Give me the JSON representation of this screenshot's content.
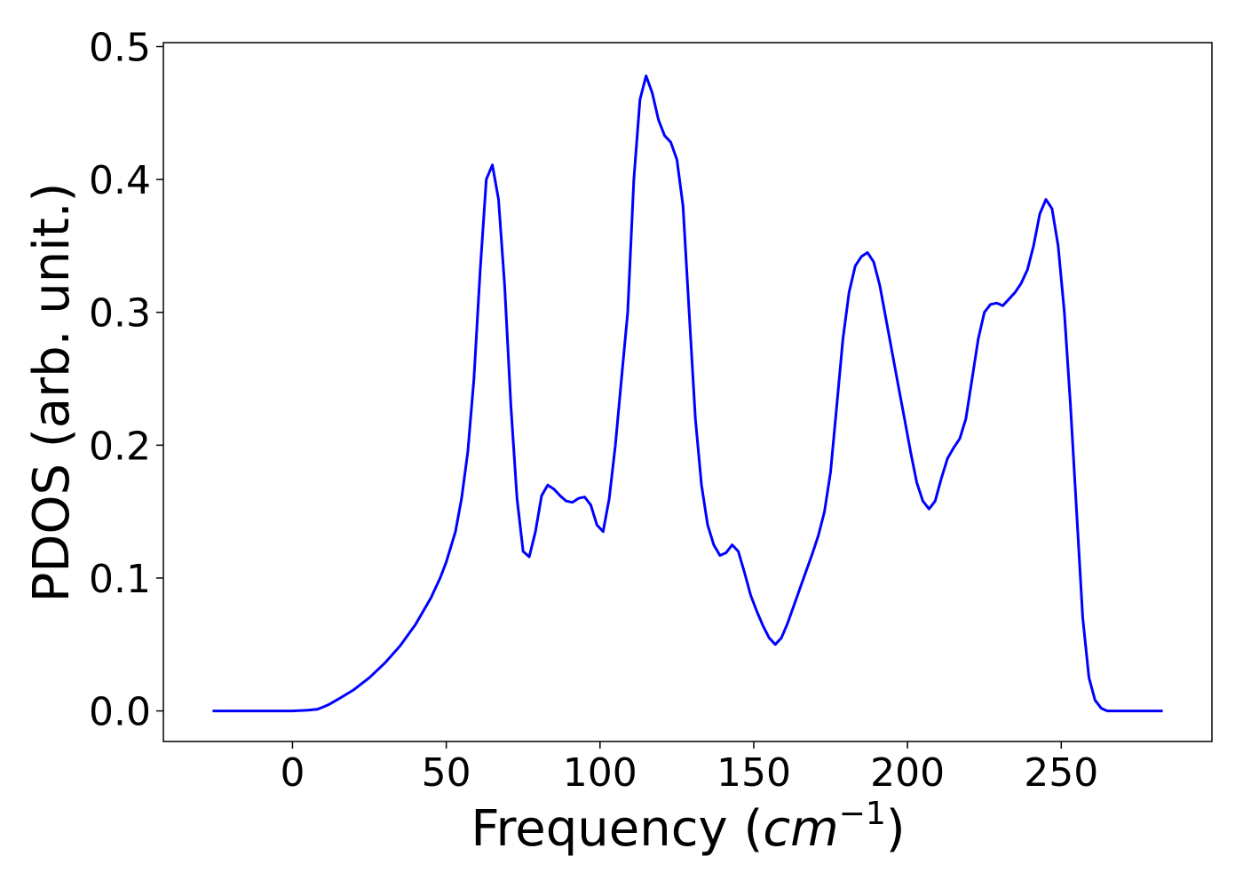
{
  "chart_data": {
    "type": "line",
    "title": "",
    "xlabel": "Frequency (",
    "xlabel_unit": "cm",
    "xlabel_exponent": "−1",
    "xlabel_close": ")",
    "ylabel": "PDOS (arb. unit.)",
    "xlim": [
      -42,
      299
    ],
    "ylim": [
      -0.023,
      0.503
    ],
    "xticks": [
      0,
      50,
      100,
      150,
      200,
      250
    ],
    "xtick_labels": [
      "0",
      "50",
      "100",
      "150",
      "200",
      "250"
    ],
    "yticks": [
      0.0,
      0.1,
      0.2,
      0.3,
      0.4,
      0.5
    ],
    "ytick_labels": [
      "0.0",
      "0.1",
      "0.2",
      "0.3",
      "0.4",
      "0.5"
    ],
    "grid": false,
    "series": [
      {
        "color": "#0000ff",
        "x": [
          -26,
          0,
          5,
          8,
          10,
          12,
          15,
          20,
          25,
          30,
          35,
          40,
          45,
          48,
          50,
          53,
          55,
          57,
          59,
          61,
          63,
          65,
          67,
          69,
          71,
          73,
          75,
          77,
          79,
          81,
          83,
          85,
          87,
          89,
          91,
          93,
          95,
          97,
          99,
          101,
          103,
          105,
          107,
          109,
          111,
          113,
          115,
          117,
          119,
          121,
          123,
          125,
          127,
          129,
          131,
          133,
          135,
          137,
          139,
          141,
          143,
          145,
          147,
          149,
          151,
          153,
          155,
          157,
          159,
          161,
          163,
          165,
          167,
          169,
          171,
          173,
          175,
          177,
          179,
          181,
          183,
          185,
          187,
          189,
          191,
          193,
          195,
          197,
          199,
          201,
          203,
          205,
          207,
          209,
          211,
          213,
          215,
          217,
          219,
          221,
          223,
          225,
          227,
          229,
          231,
          233,
          235,
          237,
          239,
          241,
          243,
          245,
          247,
          249,
          251,
          253,
          255,
          257,
          259,
          261,
          263,
          265,
          283
        ],
        "y": [
          0.0,
          0.0,
          0.0005,
          0.0012,
          0.003,
          0.005,
          0.009,
          0.016,
          0.025,
          0.036,
          0.049,
          0.065,
          0.085,
          0.1,
          0.112,
          0.135,
          0.16,
          0.195,
          0.25,
          0.33,
          0.4,
          0.411,
          0.385,
          0.32,
          0.23,
          0.16,
          0.12,
          0.116,
          0.135,
          0.162,
          0.17,
          0.167,
          0.162,
          0.158,
          0.157,
          0.16,
          0.161,
          0.155,
          0.14,
          0.135,
          0.16,
          0.2,
          0.25,
          0.3,
          0.4,
          0.46,
          0.478,
          0.465,
          0.445,
          0.433,
          0.428,
          0.415,
          0.38,
          0.3,
          0.22,
          0.17,
          0.14,
          0.125,
          0.117,
          0.119,
          0.125,
          0.12,
          0.104,
          0.087,
          0.075,
          0.064,
          0.055,
          0.05,
          0.055,
          0.066,
          0.079,
          0.092,
          0.105,
          0.118,
          0.132,
          0.15,
          0.18,
          0.23,
          0.28,
          0.315,
          0.335,
          0.342,
          0.345,
          0.338,
          0.32,
          0.295,
          0.27,
          0.245,
          0.22,
          0.195,
          0.172,
          0.158,
          0.152,
          0.158,
          0.175,
          0.19,
          0.198,
          0.205,
          0.22,
          0.25,
          0.28,
          0.3,
          0.306,
          0.307,
          0.305,
          0.31,
          0.315,
          0.322,
          0.332,
          0.35,
          0.374,
          0.385,
          0.378,
          0.35,
          0.3,
          0.23,
          0.15,
          0.07,
          0.025,
          0.008,
          0.002,
          0.0,
          0.0
        ]
      }
    ]
  }
}
